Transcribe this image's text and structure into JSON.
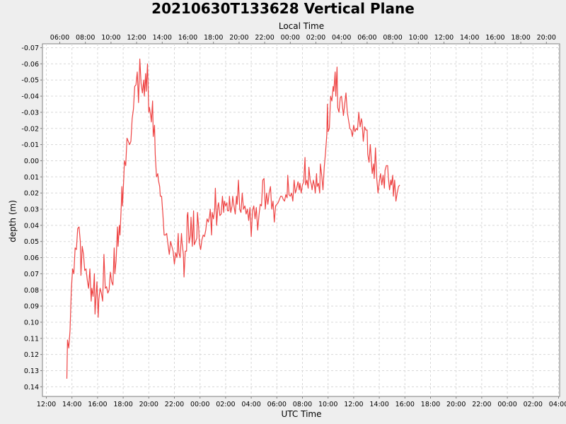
{
  "chart_data": {
    "type": "line",
    "title": "20210630T133628 Vertical Plane",
    "xlabel": "UTC Time",
    "x2label": "Local Time",
    "ylabel": "depth (m)",
    "ylim": [
      -0.07,
      0.14
    ],
    "y_inverted": true,
    "grid": true,
    "x_ticks": [
      "12:00",
      "14:00",
      "16:00",
      "18:00",
      "20:00",
      "22:00",
      "00:00",
      "02:00",
      "04:00",
      "06:00",
      "08:00",
      "10:00",
      "12:00",
      "14:00",
      "16:00",
      "18:00",
      "20:00",
      "22:00",
      "00:00",
      "02:00",
      "04:00"
    ],
    "x2_ticks": [
      "06:00",
      "08:00",
      "10:00",
      "12:00",
      "14:00",
      "16:00",
      "18:00",
      "20:00",
      "22:00",
      "00:00",
      "02:00",
      "04:00",
      "06:00",
      "08:00",
      "10:00",
      "12:00",
      "14:00",
      "16:00",
      "18:00",
      "20:00"
    ],
    "y_ticks": [
      "-0.07",
      "-0.06",
      "-0.05",
      "-0.04",
      "-0.03",
      "-0.02",
      "-0.01",
      "0.00",
      "0.01",
      "0.02",
      "0.03",
      "0.04",
      "0.05",
      "0.06",
      "0.07",
      "0.08",
      "0.09",
      "0.10",
      "0.11",
      "0.12",
      "0.13",
      "0.14"
    ],
    "series": [
      {
        "color": "#ee4444",
        "x_unit": "hours since 2021-06-30 12:00 UTC",
        "points": [
          [
            1.6,
            0.135
          ],
          [
            1.65,
            0.111
          ],
          [
            1.75,
            0.116
          ],
          [
            1.85,
            0.105
          ],
          [
            1.95,
            0.08
          ],
          [
            2.05,
            0.067
          ],
          [
            2.15,
            0.07
          ],
          [
            2.25,
            0.054
          ],
          [
            2.35,
            0.055
          ],
          [
            2.45,
            0.042
          ],
          [
            2.55,
            0.041
          ],
          [
            2.65,
            0.05
          ],
          [
            2.7,
            0.071
          ],
          [
            2.8,
            0.053
          ],
          [
            2.9,
            0.058
          ],
          [
            3.0,
            0.068
          ],
          [
            3.1,
            0.067
          ],
          [
            3.2,
            0.074
          ],
          [
            3.3,
            0.079
          ],
          [
            3.4,
            0.067
          ],
          [
            3.5,
            0.087
          ],
          [
            3.55,
            0.079
          ],
          [
            3.65,
            0.084
          ],
          [
            3.75,
            0.07
          ],
          [
            3.8,
            0.095
          ],
          [
            3.85,
            0.088
          ],
          [
            3.95,
            0.075
          ],
          [
            4.05,
            0.097
          ],
          [
            4.1,
            0.086
          ],
          [
            4.2,
            0.079
          ],
          [
            4.3,
            0.082
          ],
          [
            4.4,
            0.087
          ],
          [
            4.5,
            0.058
          ],
          [
            4.6,
            0.079
          ],
          [
            4.7,
            0.078
          ],
          [
            4.8,
            0.082
          ],
          [
            4.9,
            0.08
          ],
          [
            5.0,
            0.069
          ],
          [
            5.1,
            0.075
          ],
          [
            5.2,
            0.077
          ],
          [
            5.3,
            0.054
          ],
          [
            5.35,
            0.07
          ],
          [
            5.45,
            0.062
          ],
          [
            5.55,
            0.041
          ],
          [
            5.6,
            0.053
          ],
          [
            5.7,
            0.04
          ],
          [
            5.75,
            0.046
          ],
          [
            5.85,
            0.028
          ],
          [
            5.9,
            0.016
          ],
          [
            5.95,
            0.028
          ],
          [
            6.05,
            0.01
          ],
          [
            6.1,
            0.0
          ],
          [
            6.2,
            0.003
          ],
          [
            6.3,
            -0.014
          ],
          [
            6.4,
            -0.012
          ],
          [
            6.5,
            -0.01
          ],
          [
            6.6,
            -0.012
          ],
          [
            6.7,
            -0.026
          ],
          [
            6.8,
            -0.032
          ],
          [
            6.9,
            -0.046
          ],
          [
            7.0,
            -0.047
          ],
          [
            7.1,
            -0.055
          ],
          [
            7.2,
            -0.036
          ],
          [
            7.3,
            -0.063
          ],
          [
            7.4,
            -0.048
          ],
          [
            7.5,
            -0.042
          ],
          [
            7.6,
            -0.05
          ],
          [
            7.65,
            -0.04
          ],
          [
            7.75,
            -0.054
          ],
          [
            7.8,
            -0.043
          ],
          [
            7.9,
            -0.06
          ],
          [
            8.0,
            -0.03
          ],
          [
            8.05,
            -0.033
          ],
          [
            8.15,
            -0.028
          ],
          [
            8.2,
            -0.024
          ],
          [
            8.3,
            -0.037
          ],
          [
            8.35,
            -0.015
          ],
          [
            8.45,
            -0.022
          ],
          [
            8.5,
            -0.004
          ],
          [
            8.6,
            0.01
          ],
          [
            8.7,
            0.008
          ],
          [
            8.75,
            0.012
          ],
          [
            8.85,
            0.016
          ],
          [
            8.9,
            0.022
          ],
          [
            9.0,
            0.022
          ],
          [
            9.1,
            0.033
          ],
          [
            9.2,
            0.046
          ],
          [
            9.3,
            0.046
          ],
          [
            9.4,
            0.045
          ],
          [
            9.5,
            0.052
          ],
          [
            9.6,
            0.058
          ],
          [
            9.7,
            0.05
          ],
          [
            9.8,
            0.053
          ],
          [
            9.9,
            0.056
          ],
          [
            10.0,
            0.064
          ],
          [
            10.1,
            0.057
          ],
          [
            10.2,
            0.06
          ],
          [
            10.3,
            0.045
          ],
          [
            10.35,
            0.057
          ],
          [
            10.45,
            0.06
          ],
          [
            10.55,
            0.045
          ],
          [
            10.6,
            0.051
          ],
          [
            10.7,
            0.058
          ],
          [
            10.75,
            0.072
          ],
          [
            10.85,
            0.056
          ],
          [
            10.95,
            0.056
          ],
          [
            11.0,
            0.034
          ],
          [
            11.05,
            0.032
          ],
          [
            11.15,
            0.051
          ],
          [
            11.25,
            0.046
          ],
          [
            11.3,
            0.035
          ],
          [
            11.4,
            0.053
          ],
          [
            11.5,
            0.031
          ],
          [
            11.55,
            0.052
          ],
          [
            11.65,
            0.05
          ],
          [
            11.75,
            0.048
          ],
          [
            11.8,
            0.032
          ],
          [
            11.9,
            0.042
          ],
          [
            11.95,
            0.051
          ],
          [
            12.05,
            0.055
          ],
          [
            12.15,
            0.049
          ],
          [
            12.25,
            0.046
          ],
          [
            12.35,
            0.047
          ],
          [
            12.45,
            0.043
          ],
          [
            12.55,
            0.036
          ],
          [
            12.65,
            0.038
          ],
          [
            12.75,
            0.034
          ],
          [
            12.8,
            0.03
          ],
          [
            12.9,
            0.046
          ],
          [
            12.95,
            0.032
          ],
          [
            13.05,
            0.036
          ],
          [
            13.15,
            0.03
          ],
          [
            13.2,
            0.017
          ],
          [
            13.3,
            0.04
          ],
          [
            13.4,
            0.028
          ],
          [
            13.45,
            0.026
          ],
          [
            13.55,
            0.034
          ],
          [
            13.65,
            0.033
          ],
          [
            13.75,
            0.022
          ],
          [
            13.85,
            0.032
          ],
          [
            13.9,
            0.025
          ],
          [
            14.0,
            0.028
          ],
          [
            14.1,
            0.026
          ],
          [
            14.15,
            0.031
          ],
          [
            14.25,
            0.031
          ],
          [
            14.3,
            0.022
          ],
          [
            14.4,
            0.032
          ],
          [
            14.5,
            0.028
          ],
          [
            14.55,
            0.022
          ],
          [
            14.65,
            0.028
          ],
          [
            14.75,
            0.033
          ],
          [
            14.85,
            0.022
          ],
          [
            14.9,
            0.027
          ],
          [
            15.0,
            0.012
          ],
          [
            15.1,
            0.03
          ],
          [
            15.2,
            0.032
          ],
          [
            15.3,
            0.02
          ],
          [
            15.4,
            0.03
          ],
          [
            15.5,
            0.028
          ],
          [
            15.6,
            0.033
          ],
          [
            15.7,
            0.03
          ],
          [
            15.8,
            0.037
          ],
          [
            15.9,
            0.029
          ],
          [
            16.0,
            0.047
          ],
          [
            16.1,
            0.031
          ],
          [
            16.2,
            0.028
          ],
          [
            16.3,
            0.036
          ],
          [
            16.4,
            0.029
          ],
          [
            16.5,
            0.043
          ],
          [
            16.6,
            0.034
          ],
          [
            16.7,
            0.027
          ],
          [
            16.8,
            0.028
          ],
          [
            16.9,
            0.012
          ],
          [
            17.0,
            0.011
          ],
          [
            17.1,
            0.03
          ],
          [
            17.2,
            0.02
          ],
          [
            17.3,
            0.027
          ],
          [
            17.4,
            0.02
          ],
          [
            17.5,
            0.016
          ],
          [
            17.6,
            0.03
          ],
          [
            17.7,
            0.025
          ],
          [
            17.8,
            0.038
          ],
          [
            17.9,
            0.028
          ],
          [
            18.0,
            0.027
          ],
          [
            18.1,
            0.026
          ],
          [
            18.2,
            0.024
          ],
          [
            18.3,
            0.022
          ],
          [
            18.4,
            0.022
          ],
          [
            18.5,
            0.024
          ],
          [
            18.6,
            0.025
          ],
          [
            18.7,
            0.021
          ],
          [
            18.8,
            0.023
          ],
          [
            18.85,
            0.009
          ],
          [
            18.95,
            0.021
          ],
          [
            19.05,
            0.022
          ],
          [
            19.15,
            0.02
          ],
          [
            19.25,
            0.025
          ],
          [
            19.35,
            0.012
          ],
          [
            19.45,
            0.02
          ],
          [
            19.55,
            0.017
          ],
          [
            19.65,
            0.013
          ],
          [
            19.75,
            0.018
          ],
          [
            19.8,
            0.014
          ],
          [
            19.9,
            0.02
          ],
          [
            20.0,
            0.015
          ],
          [
            20.1,
            0.013
          ],
          [
            20.2,
            -0.002
          ],
          [
            20.25,
            0.015
          ],
          [
            20.35,
            0.012
          ],
          [
            20.45,
            0.017
          ],
          [
            20.5,
            0.004
          ],
          [
            20.6,
            0.012
          ],
          [
            20.7,
            0.015
          ],
          [
            20.75,
            0.018
          ],
          [
            20.85,
            0.012
          ],
          [
            20.95,
            0.016
          ],
          [
            21.0,
            0.02
          ],
          [
            21.1,
            0.008
          ],
          [
            21.15,
            0.016
          ],
          [
            21.25,
            0.014
          ],
          [
            21.35,
            0.02
          ],
          [
            21.4,
            0.002
          ],
          [
            21.5,
            0.009
          ],
          [
            21.6,
            0.018
          ],
          [
            21.7,
            0.004
          ],
          [
            21.8,
            -0.005
          ],
          [
            21.9,
            -0.016
          ],
          [
            21.95,
            -0.035
          ],
          [
            22.0,
            -0.018
          ],
          [
            22.1,
            -0.02
          ],
          [
            22.2,
            -0.04
          ],
          [
            22.3,
            -0.037
          ],
          [
            22.4,
            -0.046
          ],
          [
            22.45,
            -0.043
          ],
          [
            22.55,
            -0.055
          ],
          [
            22.6,
            -0.04
          ],
          [
            22.7,
            -0.058
          ],
          [
            22.75,
            -0.033
          ],
          [
            22.85,
            -0.03
          ],
          [
            22.95,
            -0.039
          ],
          [
            23.05,
            -0.04
          ],
          [
            23.1,
            -0.036
          ],
          [
            23.2,
            -0.028
          ],
          [
            23.3,
            -0.035
          ],
          [
            23.4,
            -0.042
          ],
          [
            23.5,
            -0.03
          ],
          [
            23.6,
            -0.025
          ],
          [
            23.7,
            -0.02
          ],
          [
            23.8,
            -0.019
          ],
          [
            23.9,
            -0.015
          ],
          [
            24.0,
            -0.022
          ],
          [
            24.1,
            -0.018
          ],
          [
            24.2,
            -0.02
          ],
          [
            24.3,
            -0.019
          ],
          [
            24.4,
            -0.03
          ],
          [
            24.5,
            -0.021
          ],
          [
            24.6,
            -0.026
          ],
          [
            24.65,
            -0.024
          ],
          [
            24.75,
            -0.012
          ],
          [
            24.85,
            -0.021
          ],
          [
            24.95,
            -0.019
          ],
          [
            25.05,
            -0.019
          ],
          [
            25.1,
            -0.004
          ],
          [
            25.2,
            0.001
          ],
          [
            25.3,
            -0.01
          ],
          [
            25.35,
            -0.004
          ],
          [
            25.45,
            0.008
          ],
          [
            25.55,
            0.002
          ],
          [
            25.6,
            0.011
          ],
          [
            25.7,
            -0.008
          ],
          [
            25.8,
            0.011
          ],
          [
            25.9,
            0.02
          ],
          [
            26.0,
            0.013
          ],
          [
            26.1,
            0.008
          ],
          [
            26.2,
            0.015
          ],
          [
            26.3,
            0.009
          ],
          [
            26.4,
            0.017
          ],
          [
            26.45,
            0.006
          ],
          [
            26.55,
            0.003
          ],
          [
            26.65,
            0.003
          ],
          [
            26.7,
            0.01
          ],
          [
            26.8,
            0.018
          ],
          [
            26.9,
            0.012
          ],
          [
            26.95,
            0.015
          ],
          [
            27.05,
            0.009
          ],
          [
            27.1,
            0.022
          ],
          [
            27.2,
            0.012
          ],
          [
            27.3,
            0.025
          ],
          [
            27.4,
            0.02
          ],
          [
            27.5,
            0.016
          ],
          [
            27.6,
            0.015
          ]
        ]
      }
    ]
  }
}
